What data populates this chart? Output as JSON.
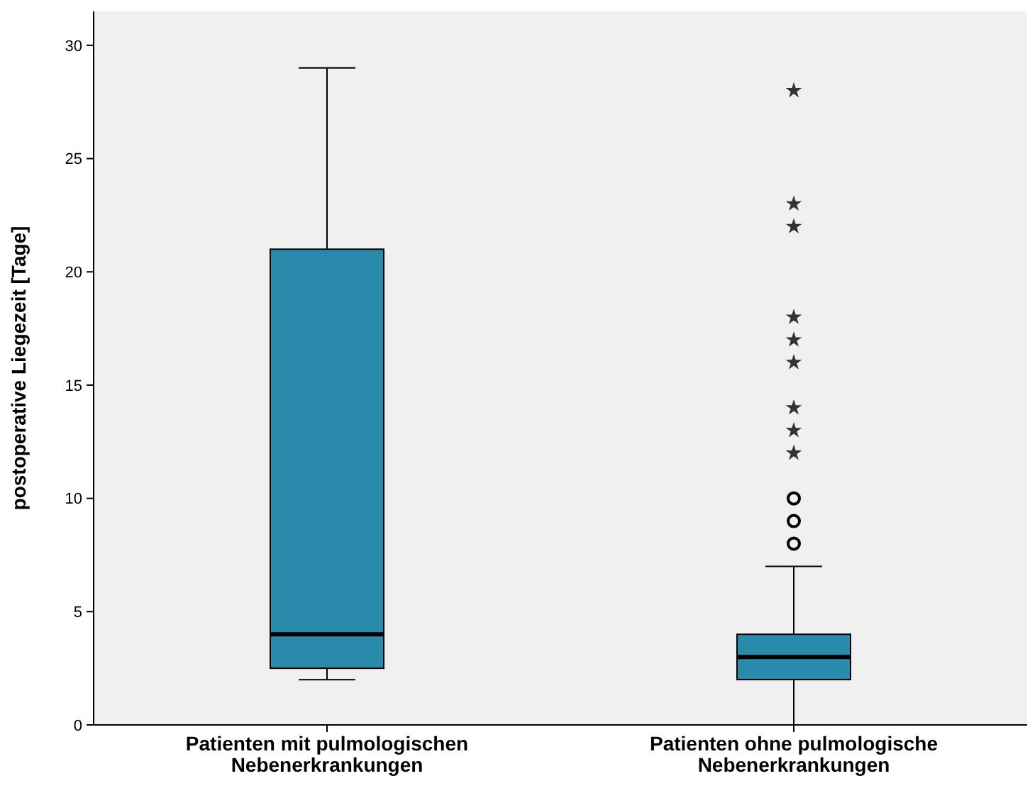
{
  "chart_data": {
    "type": "box",
    "ylabel": "postoperative Liegezeit [Tage]",
    "categories": [
      "Patienten mit pulmologischen Nebenerkrankungen",
      "Patienten ohne pulmologische Nebenerkrankungen"
    ],
    "boxes": [
      {
        "low": 2,
        "q1": 2.5,
        "median": 4,
        "q3": 21,
        "high": 29
      },
      {
        "low": 0,
        "q1": 2,
        "median": 3,
        "q3": 4,
        "high": 7,
        "outliers": [
          8,
          9,
          10,
          12,
          13,
          14,
          16,
          17,
          18,
          22,
          23,
          28
        ]
      }
    ],
    "color": "#2a8aab",
    "ylim": [
      0,
      31.5
    ],
    "yticks": [
      0,
      5,
      10,
      15,
      20,
      25,
      30
    ],
    "grid": false
  }
}
